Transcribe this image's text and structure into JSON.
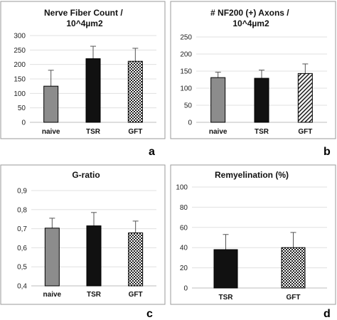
{
  "chart_data": [
    {
      "type": "bar",
      "panel": "a",
      "title_lines": [
        "Nerve Fiber Count  /",
        "10^4µm2"
      ],
      "categories": [
        "naive",
        "TSR",
        "GFT"
      ],
      "values": [
        125,
        220,
        211
      ],
      "errors": [
        55,
        43,
        45
      ],
      "ylim": [
        0,
        300
      ],
      "yticks": [
        0,
        50,
        100,
        150,
        200,
        250,
        300
      ],
      "ytick_labels": [
        "0",
        "50",
        "100",
        "150",
        "200",
        "250",
        "300"
      ],
      "bar_fills": [
        "gray",
        "black",
        "checker"
      ]
    },
    {
      "type": "bar",
      "panel": "b",
      "title_lines": [
        "# NF200 (+) Axons /",
        "10^4µm2"
      ],
      "categories": [
        "naive",
        "TSR",
        "GFT"
      ],
      "values": [
        131,
        129,
        143
      ],
      "errors": [
        16,
        24,
        28
      ],
      "ylim": [
        0,
        250
      ],
      "yticks": [
        0,
        50,
        100,
        150,
        200,
        250
      ],
      "ytick_labels": [
        "0",
        "50",
        "100",
        "150",
        "200",
        "250"
      ],
      "bar_fills": [
        "gray",
        "black",
        "hatch"
      ]
    },
    {
      "type": "bar",
      "panel": "c",
      "title_lines": [
        "G-ratio"
      ],
      "categories": [
        "naive",
        "TSR",
        "GFT"
      ],
      "values": [
        0.703,
        0.715,
        0.678
      ],
      "errors": [
        0.052,
        0.07,
        0.062
      ],
      "ylim": [
        0.4,
        0.9
      ],
      "yticks": [
        0.4,
        0.5,
        0.6,
        0.7,
        0.8,
        0.9
      ],
      "ytick_labels": [
        "0,4",
        "0,5",
        "0,6",
        "0,7",
        "0,8",
        "0,9"
      ],
      "bar_fills": [
        "gray",
        "black",
        "checker"
      ]
    },
    {
      "type": "bar",
      "panel": "d",
      "title_lines": [
        "Remyelination (%)"
      ],
      "categories": [
        "TSR",
        "GFT"
      ],
      "values": [
        38,
        40
      ],
      "errors": [
        15,
        15
      ],
      "ylim": [
        0,
        100
      ],
      "yticks": [
        0,
        20,
        40,
        60,
        80,
        100
      ],
      "ytick_labels": [
        "0",
        "20",
        "40",
        "60",
        "80",
        "100"
      ],
      "bar_fills": [
        "black",
        "checker"
      ]
    }
  ],
  "colors": {
    "gray": "#8c8c8c",
    "black": "#111111",
    "pattern": "#222222"
  }
}
